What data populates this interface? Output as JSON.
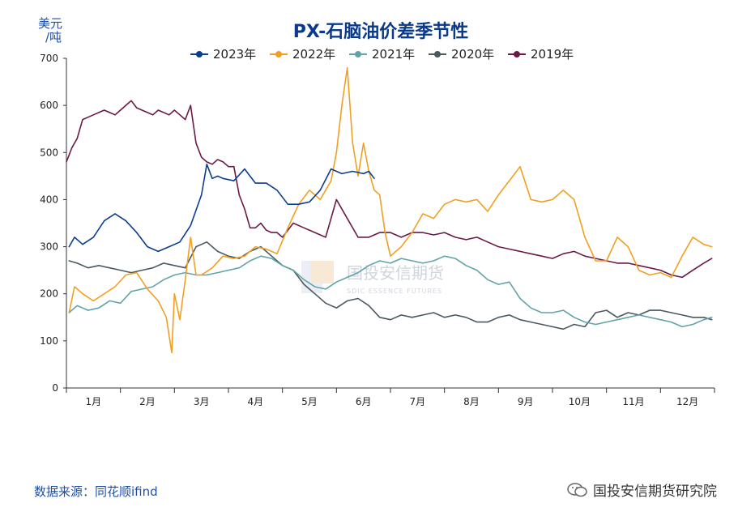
{
  "source_label": "数据来源：同花顺ifind",
  "brand_label": "国投安信期货研究院",
  "watermark": {
    "text": "国投安信期货",
    "sub": "SDIC ESSENCE FUTURES"
  },
  "colors": {
    "2023年": "#0b3d91",
    "2022年": "#f0a020",
    "2021年": "#62a3a8",
    "2020年": "#4a5860",
    "2019年": "#6b1a45"
  },
  "chart_data": {
    "type": "line",
    "title": "PX-石脑油价差季节性",
    "unit": "美元/吨",
    "unit_top": "美元",
    "unit_bottom": "/吨",
    "xlabel": "",
    "ylabel": "美元/吨",
    "ylim": [
      0,
      700
    ],
    "yticks": [
      0,
      100,
      200,
      300,
      400,
      500,
      600,
      700
    ],
    "xlim": [
      0,
      12
    ],
    "categories": [
      "1月",
      "2月",
      "3月",
      "4月",
      "5月",
      "6月",
      "7月",
      "8月",
      "9月",
      "10月",
      "11月",
      "12月"
    ],
    "legend_position": "top",
    "series": [
      {
        "name": "2023年",
        "x": [
          0.05,
          0.15,
          0.3,
          0.5,
          0.7,
          0.9,
          1.1,
          1.3,
          1.5,
          1.7,
          1.9,
          2.1,
          2.3,
          2.5,
          2.6,
          2.7,
          2.8,
          2.9,
          3.1,
          3.3,
          3.5,
          3.7,
          3.9,
          4.1,
          4.3,
          4.5,
          4.7,
          4.9,
          5.1,
          5.3,
          5.5,
          5.6,
          5.7
        ],
        "y": [
          300,
          320,
          305,
          320,
          355,
          370,
          355,
          330,
          300,
          290,
          300,
          310,
          345,
          410,
          475,
          445,
          450,
          445,
          440,
          465,
          435,
          435,
          420,
          390,
          390,
          395,
          420,
          465,
          455,
          460,
          455,
          460,
          445
        ]
      },
      {
        "name": "2022年",
        "x": [
          0.05,
          0.15,
          0.3,
          0.5,
          0.7,
          0.9,
          1.1,
          1.3,
          1.5,
          1.7,
          1.85,
          1.95,
          2.0,
          2.1,
          2.2,
          2.3,
          2.4,
          2.5,
          2.7,
          2.9,
          3.1,
          3.3,
          3.5,
          3.7,
          3.9,
          4.1,
          4.3,
          4.5,
          4.7,
          4.9,
          5.0,
          5.1,
          5.2,
          5.3,
          5.4,
          5.5,
          5.6,
          5.7,
          5.8,
          5.9,
          6.0,
          6.2,
          6.4,
          6.6,
          6.8,
          7.0,
          7.2,
          7.4,
          7.6,
          7.8,
          8.0,
          8.2,
          8.4,
          8.6,
          8.8,
          9.0,
          9.2,
          9.4,
          9.6,
          9.8,
          10.0,
          10.2,
          10.4,
          10.6,
          10.8,
          11.0,
          11.2,
          11.4,
          11.6,
          11.8,
          11.95
        ],
        "y": [
          160,
          215,
          200,
          185,
          200,
          215,
          240,
          245,
          210,
          185,
          150,
          75,
          200,
          145,
          230,
          320,
          240,
          240,
          255,
          280,
          275,
          280,
          300,
          295,
          285,
          340,
          390,
          420,
          400,
          440,
          500,
          600,
          680,
          520,
          450,
          520,
          460,
          420,
          410,
          330,
          280,
          300,
          330,
          370,
          360,
          390,
          400,
          395,
          400,
          375,
          410,
          440,
          470,
          400,
          395,
          400,
          420,
          400,
          320,
          270,
          270,
          320,
          300,
          250,
          240,
          245,
          235,
          280,
          320,
          305,
          300
        ]
      },
      {
        "name": "2021年",
        "x": [
          0.05,
          0.2,
          0.4,
          0.6,
          0.8,
          1.0,
          1.2,
          1.4,
          1.6,
          1.8,
          2.0,
          2.2,
          2.4,
          2.6,
          2.8,
          3.0,
          3.2,
          3.4,
          3.6,
          3.8,
          4.0,
          4.2,
          4.4,
          4.6,
          4.8,
          5.0,
          5.2,
          5.4,
          5.6,
          5.8,
          6.0,
          6.2,
          6.4,
          6.6,
          6.8,
          7.0,
          7.2,
          7.4,
          7.6,
          7.8,
          8.0,
          8.2,
          8.4,
          8.6,
          8.8,
          9.0,
          9.2,
          9.4,
          9.6,
          9.8,
          10.0,
          10.2,
          10.4,
          10.6,
          10.8,
          11.0,
          11.2,
          11.4,
          11.6,
          11.8,
          11.95
        ],
        "y": [
          160,
          175,
          165,
          170,
          185,
          180,
          205,
          210,
          215,
          230,
          240,
          245,
          240,
          240,
          245,
          250,
          255,
          270,
          280,
          275,
          260,
          250,
          230,
          215,
          210,
          225,
          235,
          245,
          260,
          270,
          265,
          275,
          270,
          265,
          270,
          280,
          275,
          260,
          250,
          230,
          220,
          225,
          190,
          170,
          160,
          160,
          165,
          150,
          140,
          135,
          140,
          145,
          150,
          155,
          150,
          145,
          140,
          130,
          135,
          145,
          150
        ]
      },
      {
        "name": "2020年",
        "x": [
          0.05,
          0.2,
          0.4,
          0.6,
          0.8,
          1.0,
          1.2,
          1.4,
          1.6,
          1.8,
          2.0,
          2.2,
          2.4,
          2.6,
          2.8,
          3.0,
          3.2,
          3.4,
          3.6,
          3.8,
          4.0,
          4.2,
          4.4,
          4.6,
          4.8,
          5.0,
          5.2,
          5.4,
          5.6,
          5.8,
          6.0,
          6.2,
          6.4,
          6.6,
          6.8,
          7.0,
          7.2,
          7.4,
          7.6,
          7.8,
          8.0,
          8.2,
          8.4,
          8.6,
          8.8,
          9.0,
          9.2,
          9.4,
          9.6,
          9.8,
          10.0,
          10.2,
          10.4,
          10.6,
          10.8,
          11.0,
          11.2,
          11.4,
          11.6,
          11.8,
          11.95
        ],
        "y": [
          270,
          265,
          255,
          260,
          255,
          250,
          245,
          250,
          255,
          265,
          260,
          255,
          300,
          310,
          290,
          280,
          275,
          290,
          300,
          280,
          260,
          250,
          220,
          200,
          180,
          170,
          185,
          190,
          175,
          150,
          145,
          155,
          150,
          155,
          160,
          150,
          155,
          150,
          140,
          140,
          150,
          155,
          145,
          140,
          135,
          130,
          125,
          135,
          130,
          160,
          165,
          150,
          160,
          155,
          165,
          165,
          160,
          155,
          150,
          150,
          145
        ]
      },
      {
        "name": "2019年",
        "x": [
          0.0,
          0.1,
          0.2,
          0.3,
          0.4,
          0.5,
          0.6,
          0.7,
          0.8,
          0.9,
          1.0,
          1.1,
          1.2,
          1.3,
          1.4,
          1.5,
          1.6,
          1.7,
          1.8,
          1.9,
          2.0,
          2.1,
          2.2,
          2.3,
          2.4,
          2.5,
          2.6,
          2.7,
          2.8,
          2.9,
          3.0,
          3.1,
          3.2,
          3.3,
          3.4,
          3.5,
          3.6,
          3.7,
          3.8,
          3.9,
          4.0,
          4.2,
          4.4,
          4.6,
          4.8,
          5.0,
          5.2,
          5.4,
          5.6,
          5.8,
          6.0,
          6.2,
          6.4,
          6.6,
          6.8,
          7.0,
          7.2,
          7.4,
          7.6,
          7.8,
          8.0,
          8.2,
          8.4,
          8.6,
          8.8,
          9.0,
          9.2,
          9.4,
          9.6,
          9.8,
          10.0,
          10.2,
          10.4,
          10.6,
          10.8,
          11.0,
          11.2,
          11.4,
          11.6,
          11.8,
          11.95
        ],
        "y": [
          480,
          510,
          530,
          570,
          575,
          580,
          585,
          590,
          585,
          580,
          590,
          600,
          610,
          595,
          590,
          585,
          580,
          590,
          585,
          580,
          590,
          580,
          570,
          600,
          520,
          490,
          480,
          475,
          485,
          480,
          470,
          470,
          410,
          380,
          340,
          340,
          350,
          335,
          330,
          330,
          320,
          350,
          340,
          330,
          320,
          400,
          360,
          320,
          320,
          330,
          330,
          320,
          330,
          330,
          325,
          330,
          320,
          315,
          320,
          310,
          300,
          295,
          290,
          285,
          280,
          275,
          285,
          290,
          280,
          275,
          270,
          265,
          265,
          260,
          255,
          250,
          240,
          235,
          250,
          265,
          275
        ]
      }
    ]
  }
}
